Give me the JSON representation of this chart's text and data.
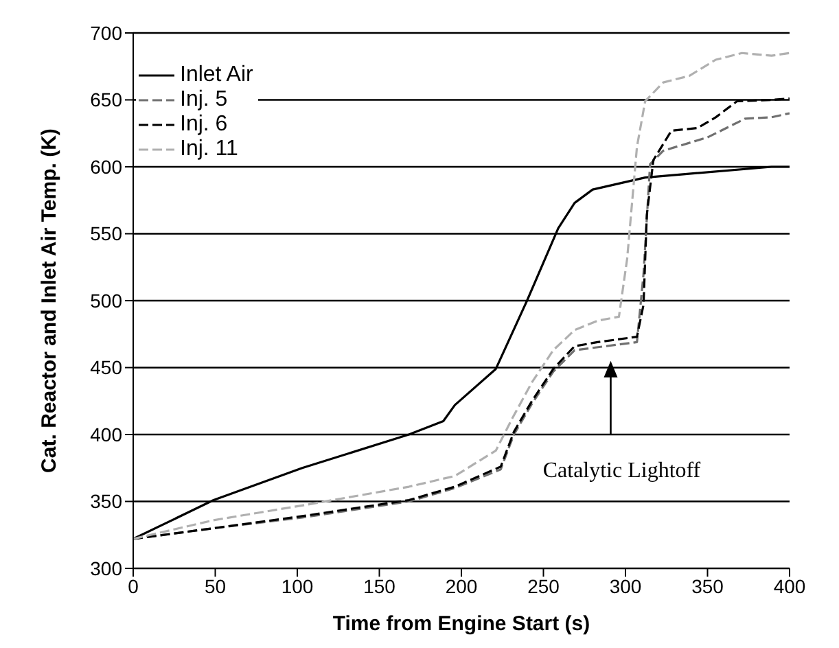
{
  "chart_data": {
    "type": "line",
    "xlabel": "Time from Engine Start (s)",
    "ylabel": "Cat. Reactor and Inlet Air Temp. (K)",
    "xlim": [
      0,
      400
    ],
    "xticks": [
      0,
      50,
      100,
      150,
      200,
      250,
      300,
      350,
      400
    ],
    "ylim": [
      300,
      700
    ],
    "yticks": [
      300,
      350,
      400,
      450,
      500,
      550,
      600,
      650,
      700
    ],
    "grid": "y",
    "legend": "top left",
    "marker": "none",
    "annotations": [
      "Catalytic Lightoff"
    ],
    "series": [
      {
        "name": "Inlet Air",
        "color": "#000000",
        "line_style": "solid",
        "x": [
          0,
          49,
          103,
          168,
          189,
          196,
          221,
          240,
          259,
          269,
          280,
          312,
          389,
          400
        ],
        "values": [
          322,
          351,
          375,
          400,
          410,
          422,
          449,
          500,
          554,
          573,
          583,
          592,
          600,
          600
        ]
      },
      {
        "name": "Inj. 5",
        "color": "#707070",
        "line_style": "dashed",
        "x": [
          0,
          49,
          103,
          168,
          196,
          224,
          232,
          243,
          256,
          269,
          307,
          311,
          315,
          323,
          350,
          373,
          389,
          400
        ],
        "values": [
          322,
          330,
          338,
          350,
          360,
          374,
          400,
          423,
          447,
          463,
          469,
          520,
          602,
          612,
          622,
          636,
          637,
          640
        ]
      },
      {
        "name": "Inj. 6",
        "color": "#000000",
        "line_style": "dashed",
        "x": [
          0,
          49,
          103,
          168,
          196,
          224,
          232,
          243,
          256,
          269,
          283,
          307,
          311,
          313,
          317,
          328,
          344,
          355,
          368,
          389,
          400
        ],
        "values": [
          322,
          330,
          339,
          351,
          361,
          376,
          402,
          425,
          449,
          466,
          469,
          473,
          497,
          564,
          605,
          627,
          629,
          637,
          649,
          650,
          651
        ]
      },
      {
        "name": "Inj. 11",
        "color": "#b0b0b0",
        "line_style": "dashed",
        "x": [
          0,
          49,
          103,
          168,
          196,
          221,
          231,
          243,
          256,
          269,
          283,
          296,
          301,
          307,
          312,
          323,
          339,
          355,
          371,
          389,
          400
        ],
        "values": [
          322,
          336,
          347,
          361,
          369,
          388,
          412,
          439,
          463,
          478,
          485,
          488,
          531,
          615,
          649,
          663,
          668,
          680,
          685,
          683,
          685
        ]
      }
    ]
  }
}
